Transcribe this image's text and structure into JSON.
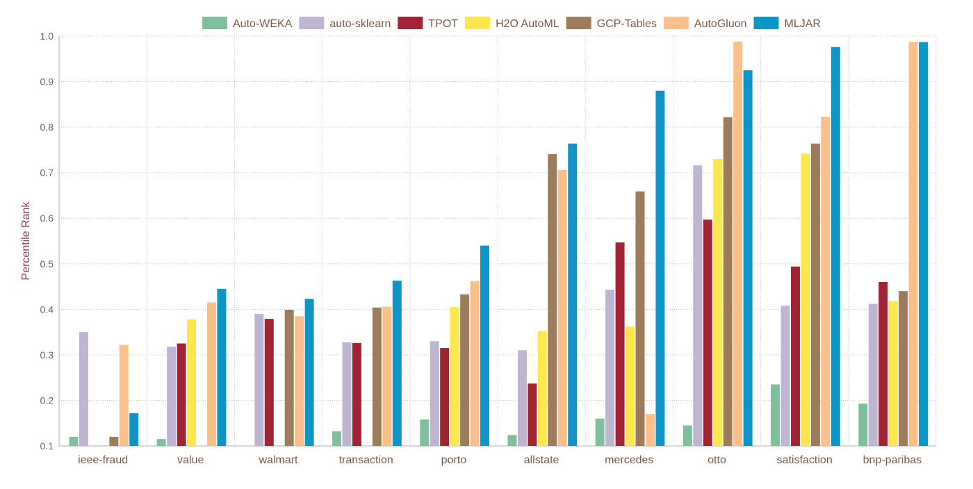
{
  "chart_data": {
    "type": "bar",
    "title": "",
    "xlabel": "",
    "ylabel": "Percentile Rank",
    "ylim": [
      0.1,
      1.0
    ],
    "yticks": [
      "0.1",
      "0.2",
      "0.3",
      "0.4",
      "0.5",
      "0.6",
      "0.7",
      "0.8",
      "0.9",
      "1.0"
    ],
    "grid": true,
    "legend_position": "top",
    "categories": [
      "ieee-fraud",
      "value",
      "walmart",
      "transaction",
      "porto",
      "allstate",
      "mercedes",
      "otto",
      "satisfaction",
      "bnp-paribas"
    ],
    "series": [
      {
        "name": "Auto-WEKA",
        "color": "#7fbf9e",
        "values": [
          0.12,
          0.115,
          null,
          0.132,
          0.158,
          0.124,
          0.16,
          0.145,
          0.235,
          0.193
        ]
      },
      {
        "name": "auto-sklearn",
        "color": "#bdb5d1",
        "values": [
          0.35,
          0.318,
          0.39,
          0.328,
          0.33,
          0.31,
          0.443,
          0.716,
          0.408,
          0.412
        ]
      },
      {
        "name": "TPOT",
        "color": "#a22236",
        "values": [
          null,
          0.325,
          0.379,
          0.326,
          0.315,
          0.237,
          0.547,
          0.597,
          0.494,
          0.46
        ]
      },
      {
        "name": "H2O AutoML",
        "color": "#fde74c",
        "values": [
          null,
          0.378,
          null,
          null,
          0.405,
          0.352,
          0.362,
          0.73,
          0.742,
          0.418
        ]
      },
      {
        "name": "GCP-Tables",
        "color": "#9c7c5b",
        "values": [
          0.12,
          null,
          0.399,
          0.404,
          0.433,
          0.741,
          0.659,
          0.822,
          0.764,
          0.44
        ]
      },
      {
        "name": "AutoGluon",
        "color": "#f9c08c",
        "values": [
          0.322,
          0.415,
          0.385,
          0.406,
          0.462,
          0.706,
          0.17,
          0.988,
          0.823,
          0.987
        ]
      },
      {
        "name": "MLJAR",
        "color": "#0f94c7",
        "values": [
          0.172,
          0.445,
          0.423,
          0.463,
          0.54,
          0.764,
          0.88,
          0.925,
          0.976,
          0.987
        ]
      }
    ]
  }
}
